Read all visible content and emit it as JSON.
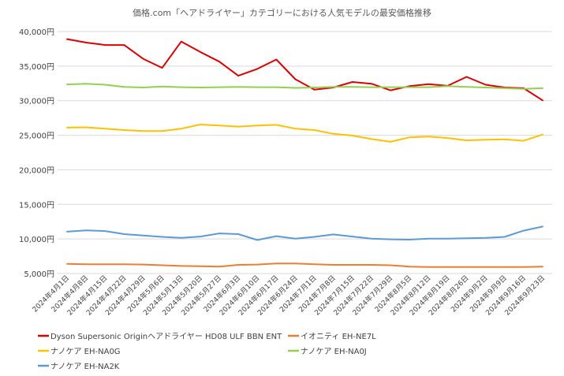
{
  "chart_data": {
    "type": "line",
    "title": "価格.com「ヘアドライヤー」カテゴリーにおける人気モデルの最安価格推移",
    "xlabel": "",
    "ylabel": "",
    "ylim": [
      5000,
      40000
    ],
    "yticks": [
      5000,
      10000,
      15000,
      20000,
      25000,
      30000,
      35000,
      40000
    ],
    "ytick_labels": [
      "5,000円",
      "10,000円",
      "15,000円",
      "20,000円",
      "25,000円",
      "30,000円",
      "35,000円",
      "40,000円"
    ],
    "grid": true,
    "legend_position": "bottom",
    "categories": [
      "2024年4月1日",
      "2024年4月8日",
      "2024年4月15日",
      "2024年4月22日",
      "2024年4月29日",
      "2024年5月6日",
      "2024年5月13日",
      "2024年5月20日",
      "2024年5月27日",
      "2024年6月3日",
      "2024年6月10日",
      "2024年6月17日",
      "2024年6月24日",
      "2024年7月1日",
      "2024年7月8日",
      "2024年7月15日",
      "2024年7月22日",
      "2024年7月29日",
      "2024年8月5日",
      "2024年8月12日",
      "2024年8月19日",
      "2024年8月26日",
      "2024年9月2日",
      "2024年9月9日",
      "2024年9月16日",
      "2024年9月23日"
    ],
    "series": [
      {
        "name": "Dyson Supersonic Originヘアドライヤー HD08 ULF BBN ENT",
        "color": "#e00000",
        "values": [
          38900,
          38400,
          38050,
          38050,
          36050,
          34750,
          38550,
          37050,
          35650,
          33600,
          34600,
          35950,
          33100,
          31600,
          31900,
          32700,
          32450,
          31500,
          32100,
          32400,
          32150,
          33450,
          32300,
          31900,
          31800,
          30050
        ]
      },
      {
        "name": "イオニティ EH-NE7L",
        "color": "#ed7d31",
        "values": [
          6400,
          6350,
          6350,
          6350,
          6300,
          6200,
          6100,
          6050,
          6000,
          6250,
          6300,
          6450,
          6450,
          6350,
          6250,
          6250,
          6250,
          6200,
          6000,
          5950,
          5950,
          5950,
          5950,
          5950,
          5950,
          6000
        ]
      },
      {
        "name": "ナノケア EH-NA0G",
        "color": "#ffc000",
        "values": [
          26100,
          26150,
          25950,
          25750,
          25600,
          25600,
          25950,
          26550,
          26400,
          26250,
          26400,
          26500,
          25950,
          25750,
          25200,
          24950,
          24450,
          24050,
          24700,
          24800,
          24600,
          24250,
          24350,
          24400,
          24200,
          25100
        ]
      },
      {
        "name": "ナノケア EH-NA0J",
        "color": "#92d050",
        "values": [
          32350,
          32450,
          32300,
          32000,
          31900,
          32050,
          31950,
          31900,
          31950,
          32000,
          31950,
          31950,
          31850,
          31900,
          32000,
          32000,
          31950,
          31950,
          31950,
          31950,
          32100,
          32000,
          31900,
          31800,
          31700,
          31800
        ]
      },
      {
        "name": "ナノケア EH-NA2K",
        "color": "#5b9bd5",
        "values": [
          11050,
          11250,
          11150,
          10700,
          10500,
          10300,
          10150,
          10350,
          10800,
          10700,
          9850,
          10400,
          10050,
          10300,
          10650,
          10350,
          10050,
          9950,
          9900,
          10050,
          10050,
          10100,
          10150,
          10300,
          11200,
          11800
        ]
      }
    ]
  }
}
